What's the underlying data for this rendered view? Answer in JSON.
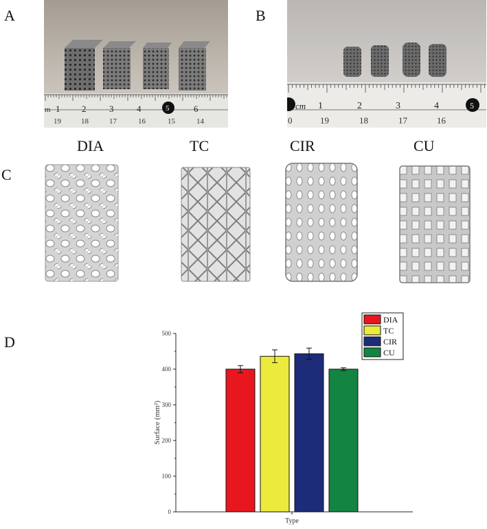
{
  "panels": {
    "a": "A",
    "b": "B",
    "c": "C",
    "d": "D"
  },
  "photo_a": {
    "ruler_numbers": [
      "1",
      "2",
      "3",
      "4",
      "5",
      "6"
    ],
    "ruler_lower": [
      "19",
      "18",
      "17",
      "16",
      "15",
      "14"
    ],
    "unit_label": "m"
  },
  "photo_b": {
    "ruler_numbers": [
      "1",
      "2",
      "3",
      "4",
      "5"
    ],
    "ruler_lower": [
      "0",
      "19",
      "18",
      "17",
      "16"
    ],
    "unit_label": "cm"
  },
  "scaffold_titles": [
    "DIA",
    "TC",
    "CIR",
    "CU"
  ],
  "colors": {
    "DIA": "#e8171f",
    "TC": "#ecea3c",
    "CIR": "#1d2c79",
    "CU": "#148443"
  },
  "chart_data": {
    "type": "bar",
    "categories": [
      "DIA",
      "TC",
      "CIR",
      "CU"
    ],
    "values": [
      400,
      436,
      443,
      400
    ],
    "errors": [
      10,
      18,
      16,
      4
    ],
    "xlabel": "Type",
    "ylabel": "Surface (mm²)",
    "ylim": [
      0,
      500
    ],
    "yticks": [
      0,
      100,
      200,
      300,
      400,
      500
    ],
    "legend": [
      "DIA",
      "TC",
      "CIR",
      "CU"
    ],
    "legend_position": "top-right"
  }
}
